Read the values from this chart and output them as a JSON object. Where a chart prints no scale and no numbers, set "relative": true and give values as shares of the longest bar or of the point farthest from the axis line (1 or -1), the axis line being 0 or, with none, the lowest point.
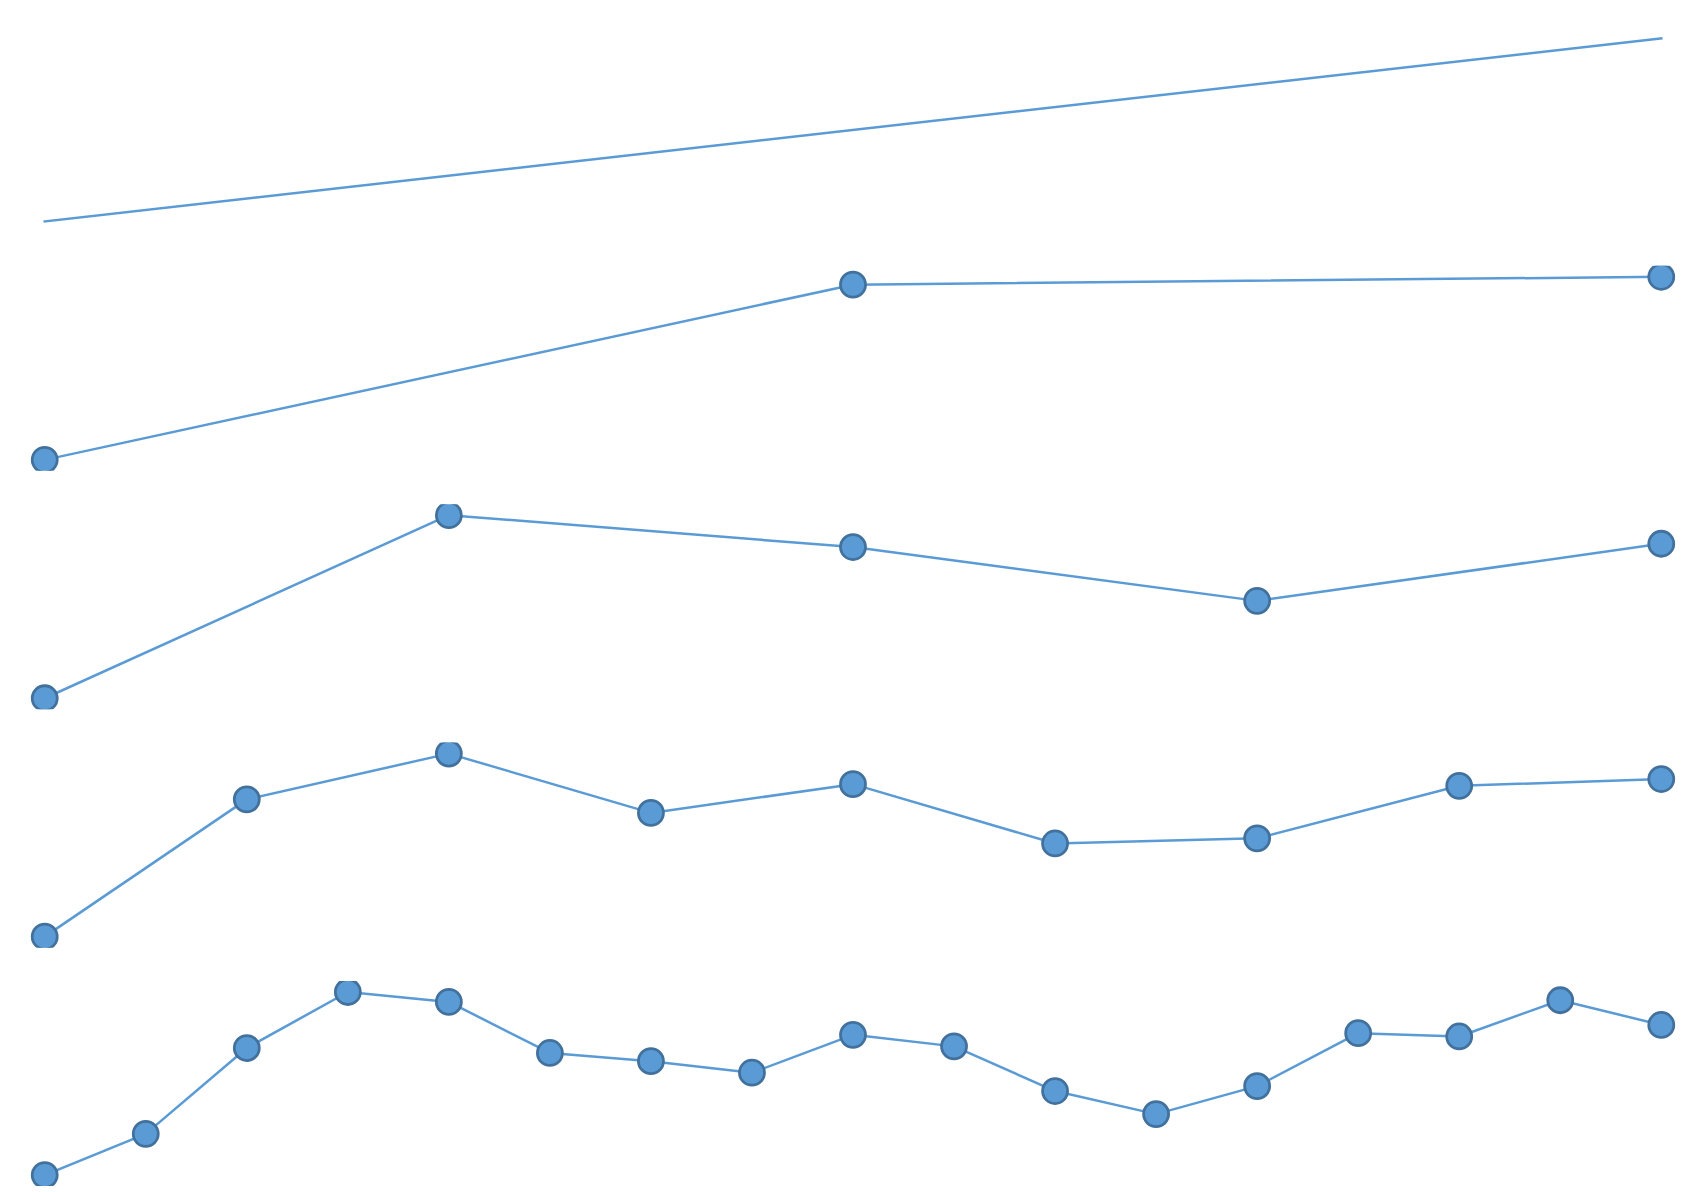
{
  "chart_data": [
    {
      "type": "line",
      "relative": true,
      "marker": "none",
      "categories": [
        null,
        null
      ],
      "series": [
        {
          "color": "#5b9bd5",
          "values": [
            0,
            1
          ]
        }
      ]
    },
    {
      "type": "line",
      "relative": true,
      "marker": "circle",
      "categories": [
        null,
        null,
        null
      ],
      "series": [
        {
          "color": "#5b9bd5",
          "values": [
            0,
            0.957,
            1
          ]
        }
      ]
    },
    {
      "type": "line",
      "relative": true,
      "marker": "circle",
      "categories": [
        null,
        null,
        null,
        null,
        null
      ],
      "series": [
        {
          "color": "#5b9bd5",
          "values": [
            0,
            1,
            0.826,
            0.532,
            0.844
          ]
        }
      ]
    },
    {
      "type": "line",
      "relative": true,
      "marker": "circle",
      "categories": [
        null,
        null,
        null,
        null,
        null,
        null,
        null,
        null,
        null
      ],
      "series": [
        {
          "color": "#5b9bd5",
          "values": [
            0,
            0.75,
            1,
            0.676,
            0.833,
            0.509,
            0.537,
            0.824,
            0.861
          ]
        }
      ]
    },
    {
      "type": "line",
      "relative": true,
      "marker": "circle",
      "categories": [
        null,
        null,
        null,
        null,
        null,
        null,
        null,
        null,
        null,
        null,
        null,
        null,
        null,
        null,
        null,
        null,
        null
      ],
      "series": [
        {
          "color": "#5b9bd5",
          "values": [
            0,
            0.225,
            0.694,
            1,
            0.946,
            0.667,
            0.622,
            0.559,
            0.766,
            0.703,
            0.459,
            0.333,
            0.486,
            0.775,
            0.757,
            0.955,
            0.82
          ]
        }
      ]
    }
  ]
}
